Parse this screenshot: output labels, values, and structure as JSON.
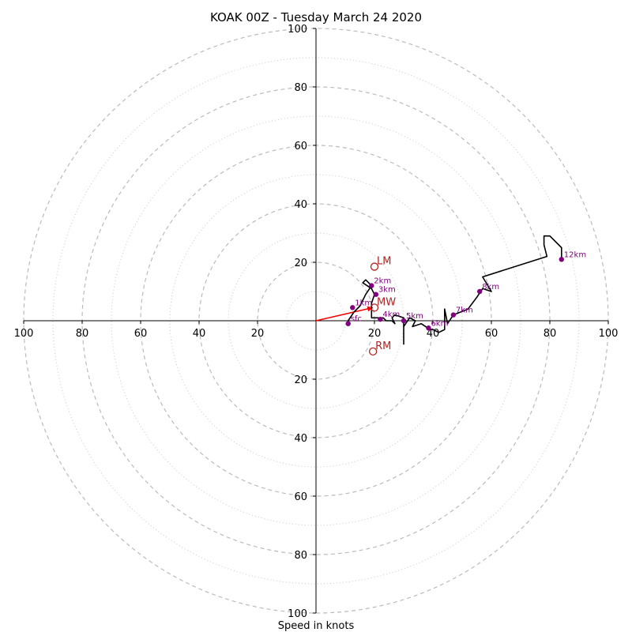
{
  "chart_data": {
    "type": "hodograph",
    "title": "KOAK 00Z - Tuesday March 24 2020",
    "xlabel": "Speed in knots",
    "range": [
      -100,
      100
    ],
    "ring_major": [
      20,
      40,
      60,
      80,
      100
    ],
    "ring_minor": [
      10,
      30,
      50,
      70,
      90
    ],
    "x_ticks": [
      "100",
      "80",
      "60",
      "40",
      "20",
      "20",
      "40",
      "60",
      "80",
      "100"
    ],
    "x_tick_values": [
      -100,
      -80,
      -60,
      -40,
      -20,
      20,
      40,
      60,
      80,
      100
    ],
    "y_ticks": [
      "100",
      "80",
      "60",
      "40",
      "20",
      "20",
      "40",
      "60",
      "80",
      "100"
    ],
    "y_tick_values": [
      100,
      80,
      60,
      40,
      20,
      -20,
      -40,
      -60,
      -80,
      -100
    ],
    "grid": true,
    "colors": {
      "trace": "#000000",
      "height_markers": "#800080",
      "storm_motion": "#b22222",
      "shear_vector": "#ff0000",
      "grid": "#bbbbbb"
    },
    "hodograph_trace": [
      [
        11,
        0
      ],
      [
        13,
        3
      ],
      [
        15,
        5
      ],
      [
        17,
        9
      ],
      [
        19,
        12
      ],
      [
        17,
        14
      ],
      [
        16,
        13
      ],
      [
        19,
        11
      ],
      [
        20,
        9
      ],
      [
        19,
        6
      ],
      [
        19,
        1
      ],
      [
        23,
        1
      ],
      [
        24,
        0
      ],
      [
        26,
        0
      ],
      [
        27,
        -1
      ],
      [
        26,
        1
      ],
      [
        27,
        2
      ],
      [
        30,
        1
      ],
      [
        30,
        -8
      ],
      [
        30,
        -2
      ],
      [
        32,
        1
      ],
      [
        34,
        0
      ],
      [
        33,
        -2
      ],
      [
        36,
        -1
      ],
      [
        39,
        -3
      ],
      [
        40,
        -3
      ],
      [
        42,
        -4
      ],
      [
        44,
        -3
      ],
      [
        44,
        -1
      ],
      [
        44,
        4
      ],
      [
        45,
        -1
      ],
      [
        47,
        2
      ],
      [
        52,
        4
      ],
      [
        55,
        8
      ],
      [
        57,
        11
      ],
      [
        60,
        10
      ],
      [
        57,
        15
      ],
      [
        79,
        22
      ],
      [
        78,
        26
      ],
      [
        78,
        29
      ],
      [
        80,
        29
      ],
      [
        84,
        25
      ],
      [
        84,
        21
      ]
    ],
    "height_markers": [
      {
        "label": "sfc",
        "x": 11,
        "y": -1
      },
      {
        "label": "1km",
        "x": 12.5,
        "y": 4.5
      },
      {
        "label": "2km",
        "x": 19,
        "y": 12
      },
      {
        "label": "3km",
        "x": 20.5,
        "y": 9
      },
      {
        "label": "4km",
        "x": 22,
        "y": 0.5
      },
      {
        "label": "5km",
        "x": 30,
        "y": 0
      },
      {
        "label": "6km",
        "x": 38.5,
        "y": -2.5
      },
      {
        "label": "7km",
        "x": 47,
        "y": 2
      },
      {
        "label": "8km",
        "x": 56,
        "y": 10
      },
      {
        "label": "12km",
        "x": 84,
        "y": 21
      }
    ],
    "storm_motion": [
      {
        "label": "LM",
        "x": 20,
        "y": 18.5
      },
      {
        "label": "MW",
        "x": 20,
        "y": 4.5
      },
      {
        "label": "RM",
        "x": 19.5,
        "y": -10.5
      }
    ],
    "shear_vector": {
      "x0": 0,
      "y0": 0,
      "x1": 19.5,
      "y1": 4.5
    }
  }
}
